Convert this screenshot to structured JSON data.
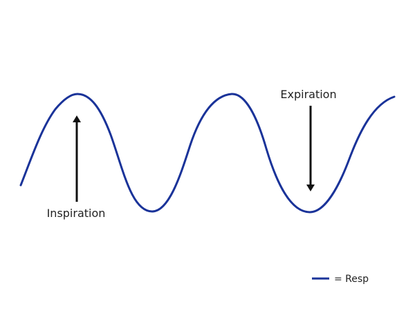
{
  "diagram": {
    "annotations": {
      "inspiration": "Inspiration",
      "expiration": "Expiration"
    },
    "legend": {
      "label": "= Resp"
    }
  },
  "colors": {
    "wave": "#1a3399",
    "arrow": "#111111",
    "text": "#222222"
  }
}
